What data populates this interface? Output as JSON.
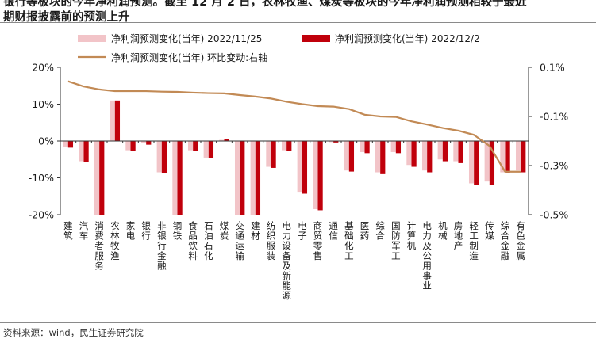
{
  "header": {
    "title_line1": "银行等板块的今年净利润预测。截至 12 月 2 日，农林牧渔、煤炭等板块的今年净利润预测相较于最近",
    "title_line2": "期财报披露前的预测上升"
  },
  "footer": {
    "source": "资料来源：wind，民生证券研究院"
  },
  "colors": {
    "series_1125": "#f2c4c8",
    "series_1202": "#c0000b",
    "line": "#c28a55"
  },
  "chart_data": {
    "type": "bar",
    "title": "",
    "xlabel": "",
    "ylabel": "",
    "ylim": [
      -20,
      20
    ],
    "y2lim": [
      -0.5,
      0.1
    ],
    "y_ticks": [
      "20%",
      "10%",
      "0%",
      "-10%",
      "-20%"
    ],
    "y2_ticks": [
      "0.1%",
      "-0.1%",
      "-0.3%",
      "-0.5%"
    ],
    "legend": {
      "placement": "top"
    },
    "categories": [
      "建筑",
      "汽车",
      "消费者服务",
      "农林牧渔",
      "家电",
      "银行",
      "非银行金融",
      "钢铁",
      "食品饮料",
      "石油石化",
      "煤炭",
      "交通运输",
      "建材",
      "纺织服装",
      "电力设备及新能源",
      "电子",
      "商贸零售",
      "通信",
      "基础化工",
      "医药",
      "综合",
      "国防军工",
      "计算机",
      "电力及公用事业",
      "机械",
      "房地产",
      "轻工制造",
      "传媒",
      "综合金融",
      "有色金属"
    ],
    "series": [
      {
        "name": "净利润预测变化(当年) 2022/11/25",
        "axis": "left",
        "values": [
          -1.5,
          -5.5,
          -20,
          11,
          -2.5,
          -0.5,
          -8.5,
          -20,
          -2.5,
          -4.5,
          0.3,
          -20,
          -20,
          -7,
          -2.5,
          -14,
          -18.5,
          -0.3,
          -8,
          -3,
          -8.5,
          -3,
          -6.5,
          -8,
          -5,
          -5.5,
          -11.5,
          -11,
          -8.5,
          -8
        ]
      },
      {
        "name": "净利润预测变化(当年) 2022/12/2",
        "axis": "left",
        "values": [
          -1.8,
          -5.8,
          -20,
          11,
          -2.6,
          -1,
          -8.7,
          -20,
          -2.6,
          -4.7,
          0.5,
          -20,
          -20,
          -7.3,
          -2.6,
          -14.3,
          -18.8,
          -0.4,
          -8.3,
          -3.3,
          -9,
          -3.3,
          -7,
          -8.5,
          -5.5,
          -6,
          -12,
          -12,
          -8.7,
          -8.5
        ]
      },
      {
        "name": "净利润预测变化(当年) 环比变动:右轴",
        "axis": "right",
        "type": "line",
        "values": [
          0.043,
          0.022,
          0.01,
          0.003,
          0.003,
          0.003,
          0.001,
          0.0,
          -0.003,
          -0.005,
          -0.006,
          -0.013,
          -0.019,
          -0.027,
          -0.04,
          -0.05,
          -0.058,
          -0.06,
          -0.07,
          -0.093,
          -0.1,
          -0.102,
          -0.12,
          -0.133,
          -0.147,
          -0.158,
          -0.175,
          -0.22,
          -0.325,
          -0.325
        ]
      }
    ]
  }
}
